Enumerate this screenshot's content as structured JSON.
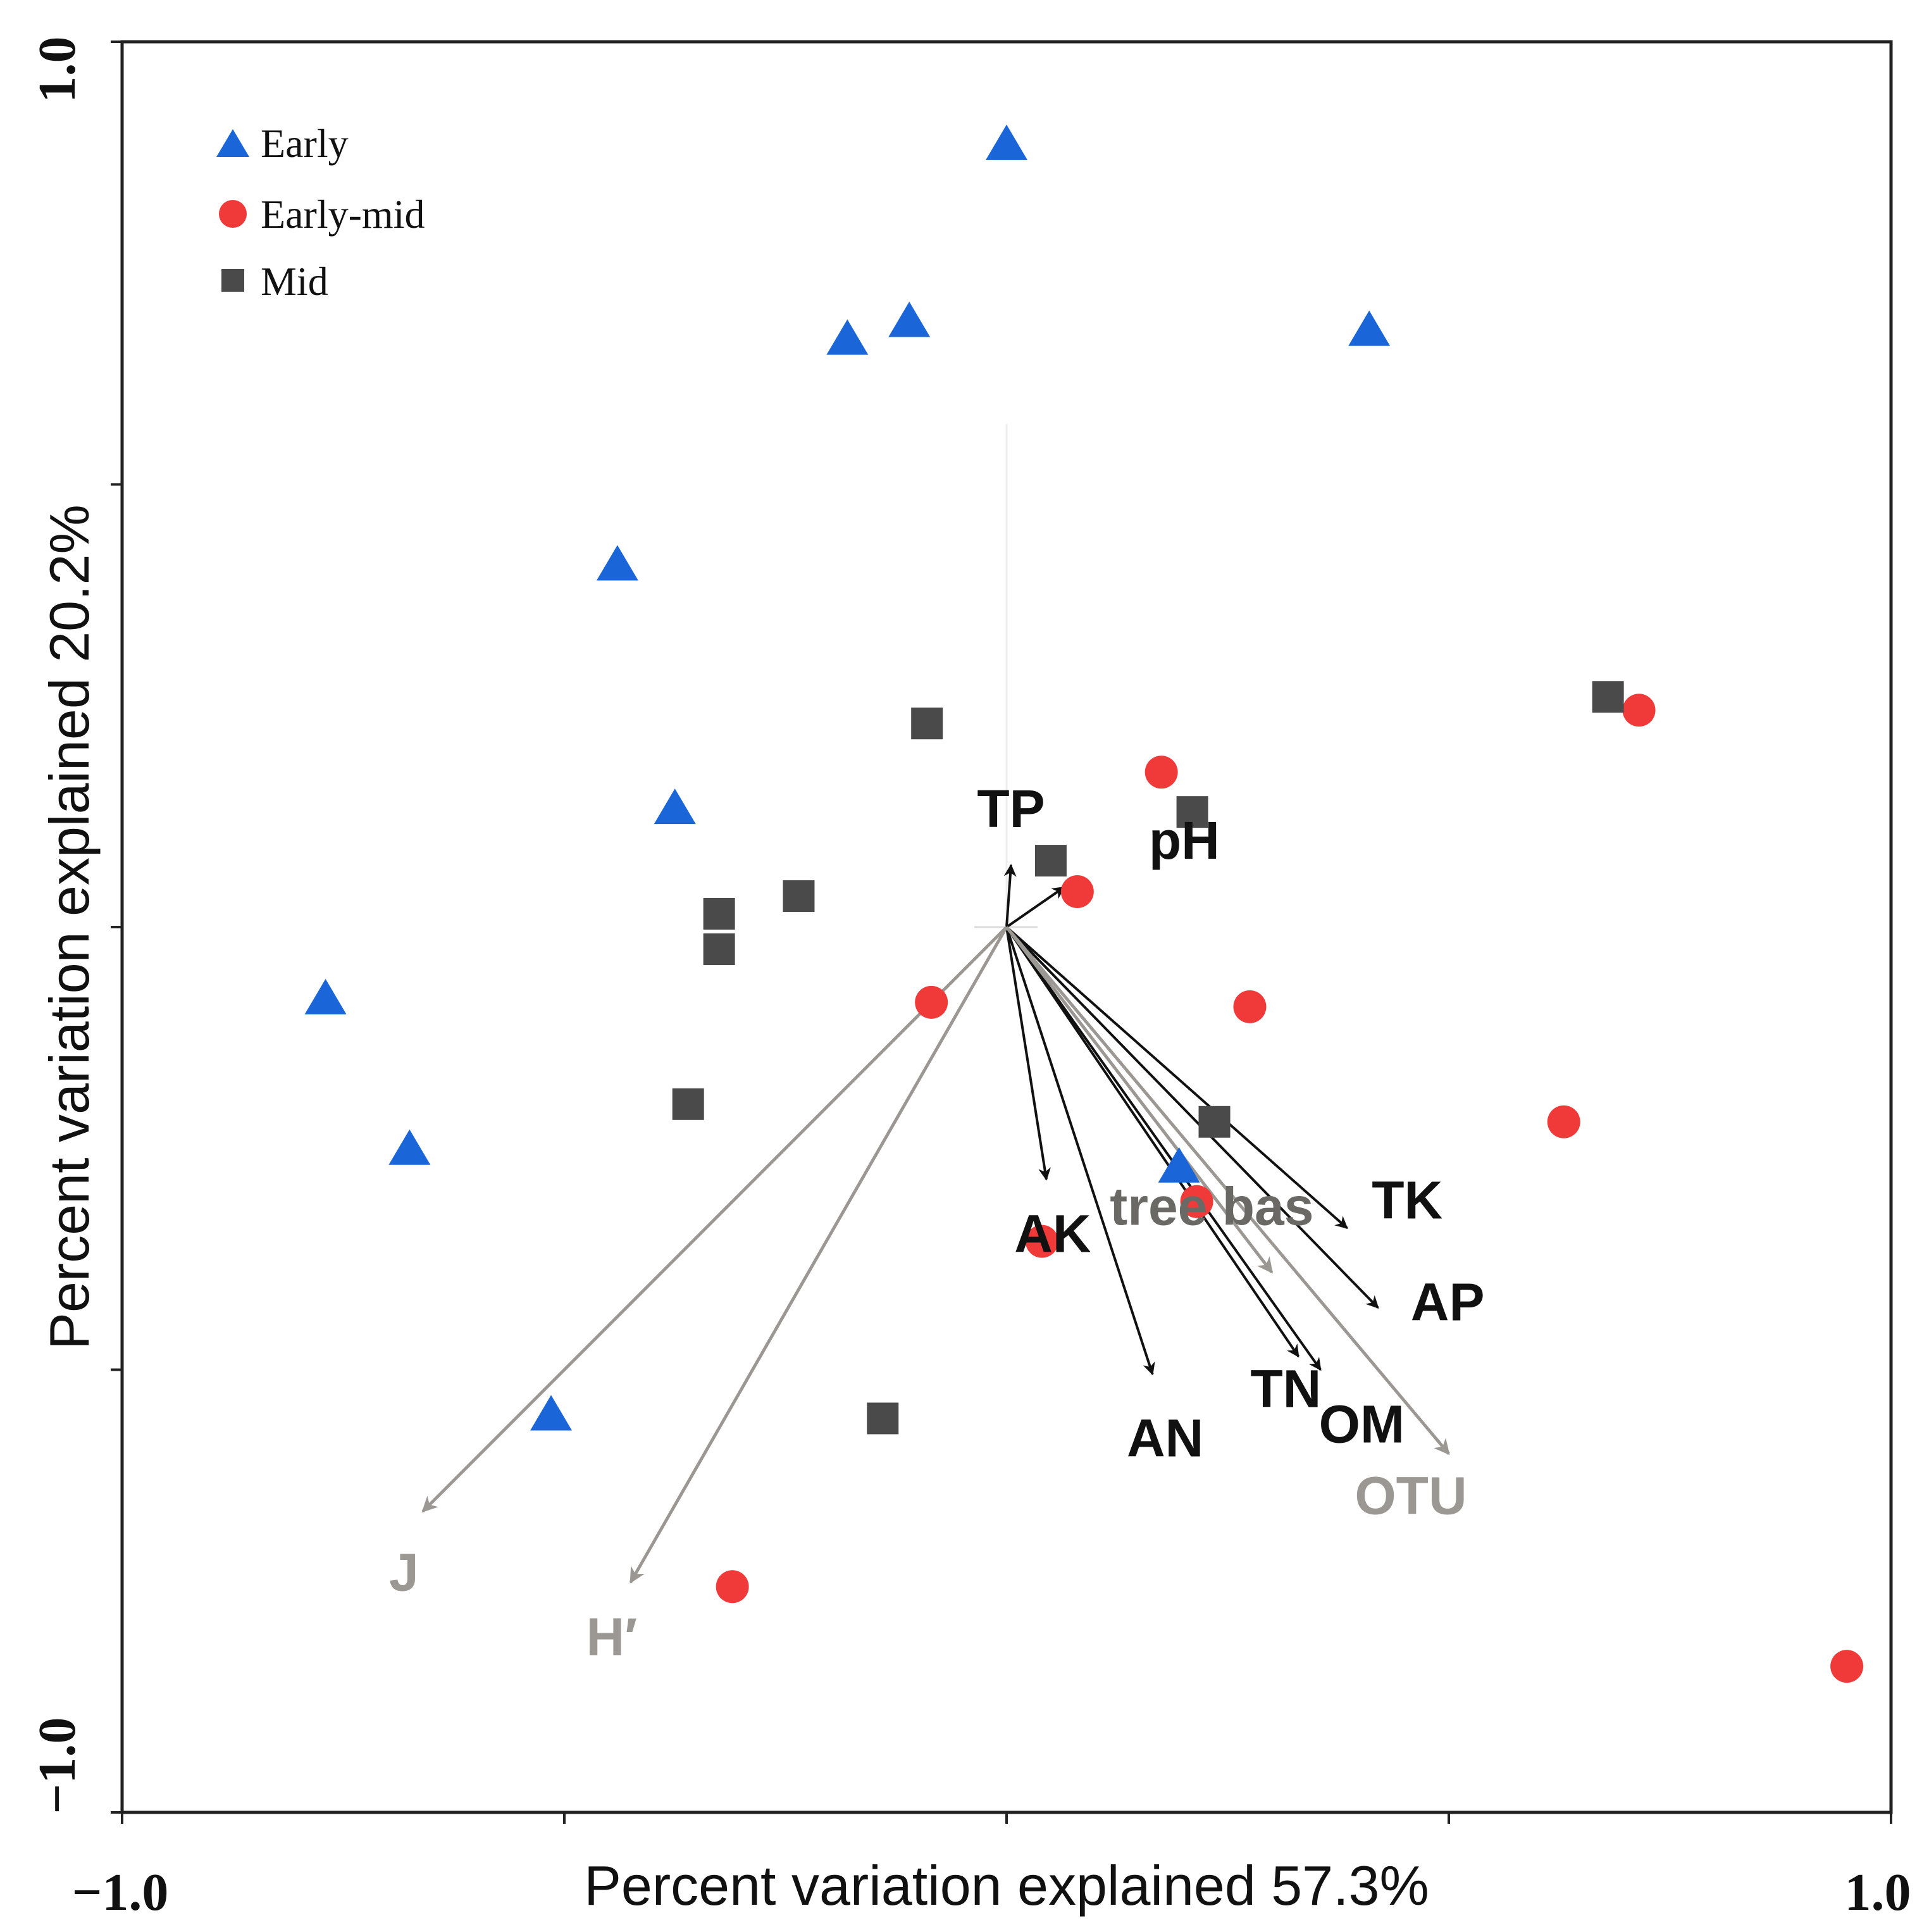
{
  "chart_data": {
    "type": "scatter",
    "subtype": "ordination-biplot",
    "xlabel": "Percent variation explained 57.3%",
    "ylabel": "Percent variation explained 20.2%",
    "xlim": [
      -1.0,
      1.0
    ],
    "ylim": [
      -1.0,
      1.0
    ],
    "tick_labels": {
      "x_min": "−1.0",
      "x_max": "1.0",
      "y_min": "−1.0",
      "y_max": "1.0"
    },
    "ticks": [
      -1.0,
      -0.5,
      0.0,
      0.5,
      1.0
    ],
    "legend_position": "top-left",
    "colors": {
      "Early": "#1a66d9",
      "Early-mid": "#f03a3a",
      "Mid": "#4a4a4a",
      "env_arrow": "#111111",
      "diversity_arrow": "#9b9893"
    },
    "series": [
      {
        "name": "Early",
        "marker": "triangle",
        "x": [
          0.0,
          -0.11,
          -0.18,
          0.41,
          -0.44,
          -0.375,
          -0.77,
          -0.675,
          0.195,
          -0.515
        ],
        "y": [
          0.885,
          0.685,
          0.665,
          0.675,
          0.41,
          0.135,
          -0.08,
          -0.25,
          -0.27,
          -0.55
        ]
      },
      {
        "name": "Early-mid",
        "marker": "circle",
        "x": [
          0.715,
          0.175,
          0.08,
          -0.085,
          0.275,
          0.63,
          0.215,
          0.04,
          -0.31,
          0.95
        ],
        "y": [
          0.245,
          0.175,
          0.04,
          -0.085,
          -0.09,
          -0.22,
          -0.31,
          -0.355,
          -0.745,
          -0.835
        ]
      },
      {
        "name": "Mid",
        "marker": "square",
        "x": [
          0.68,
          -0.09,
          0.21,
          0.05,
          -0.235,
          -0.325,
          -0.325,
          -0.36,
          0.235,
          -0.14
        ],
        "y": [
          0.26,
          0.23,
          0.13,
          0.075,
          0.035,
          0.015,
          -0.025,
          -0.2,
          -0.22,
          -0.555
        ]
      }
    ],
    "vectors": [
      {
        "label": "TP",
        "x": 0.005,
        "y": 0.07,
        "group": "env"
      },
      {
        "label": "pH",
        "x": 0.065,
        "y": 0.045,
        "group": "env"
      },
      {
        "label": "AK",
        "x": 0.045,
        "y": -0.285,
        "group": "env"
      },
      {
        "label": "AN",
        "x": 0.165,
        "y": -0.505,
        "group": "env"
      },
      {
        "label": "TK",
        "x": 0.385,
        "y": -0.34,
        "group": "env"
      },
      {
        "label": "AP",
        "x": 0.42,
        "y": -0.43,
        "group": "env"
      },
      {
        "label": "TN",
        "x": 0.33,
        "y": -0.485,
        "group": "env"
      },
      {
        "label": "OM",
        "x": 0.355,
        "y": -0.5,
        "group": "env"
      },
      {
        "label": "tree bas",
        "x": 0.3,
        "y": -0.39,
        "group": "diversity"
      },
      {
        "label": "OTU",
        "x": 0.5,
        "y": -0.595,
        "group": "diversity"
      },
      {
        "label": "J",
        "x": -0.66,
        "y": -0.66,
        "group": "diversity"
      },
      {
        "label": "H′",
        "x": -0.425,
        "y": -0.74,
        "group": "diversity"
      }
    ]
  }
}
